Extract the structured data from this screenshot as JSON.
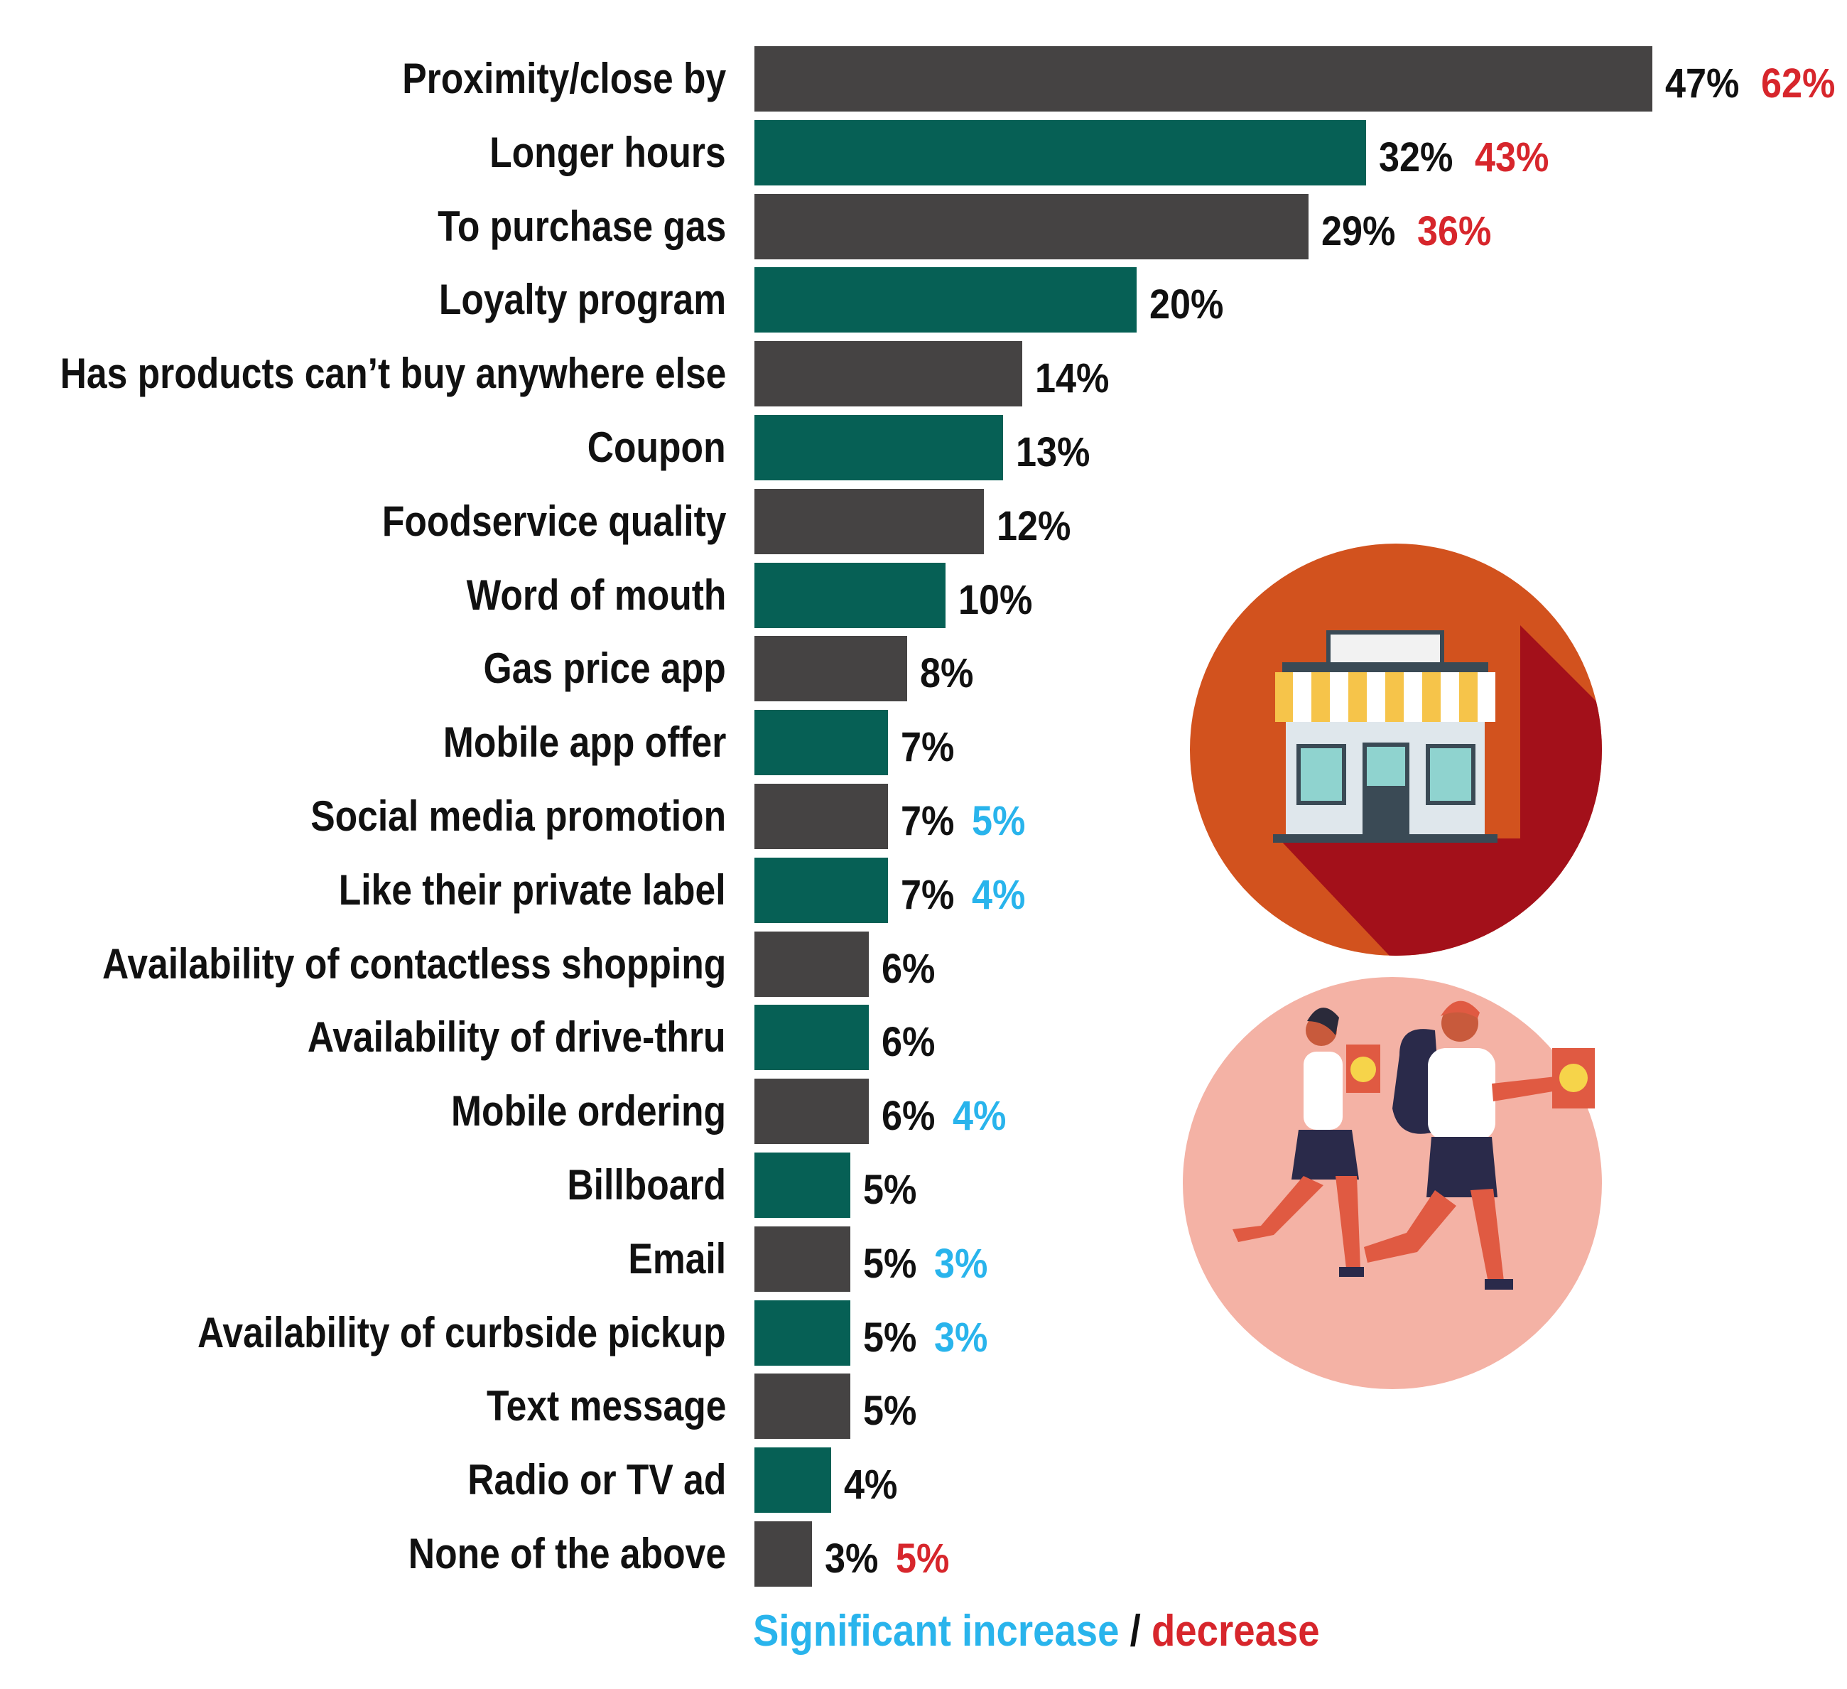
{
  "chart_data": {
    "type": "bar",
    "orientation": "horizontal",
    "categories": [
      "Proximity/close by",
      "Longer hours",
      "To purchase gas",
      "Loyalty program",
      "Has products can’t buy anywhere else",
      "Coupon",
      "Foodservice quality",
      "Word of mouth",
      "Gas price app",
      "Mobile app offer",
      "Social media promotion",
      "Like their private label",
      "Availability of contactless shopping",
      "Availability of drive-thru",
      "Mobile ordering",
      "Billboard",
      "Email",
      "Availability of curbside pickup",
      "Text message",
      "Radio or TV ad",
      "None of the above"
    ],
    "values": [
      47,
      32,
      29,
      20,
      14,
      13,
      12,
      10,
      8,
      7,
      7,
      7,
      6,
      6,
      6,
      5,
      5,
      5,
      5,
      4,
      3
    ],
    "value_labels": [
      "47%",
      "32%",
      "29%",
      "20%",
      "14%",
      "13%",
      "12%",
      "10%",
      "8%",
      "7%",
      "7%",
      "7%",
      "6%",
      "6%",
      "6%",
      "5%",
      "5%",
      "5%",
      "5%",
      "4%",
      "3%"
    ],
    "comparison_labels": [
      "62%",
      "43%",
      "36%",
      "",
      "",
      "",
      "",
      "",
      "",
      "",
      "5%",
      "4%",
      "",
      "",
      "4%",
      "",
      "3%",
      "3%",
      "",
      "",
      "5%"
    ],
    "comparison_type": [
      "decrease",
      "decrease",
      "decrease",
      "",
      "",
      "",
      "",
      "",
      "",
      "",
      "increase",
      "increase",
      "",
      "",
      "increase",
      "",
      "increase",
      "increase",
      "",
      "",
      "decrease"
    ],
    "bar_colors": [
      "#454343",
      "#066055"
    ],
    "increase_color": "#29b4ec",
    "decrease_color": "#d7262c",
    "legend": {
      "increase_text": "Significant increase",
      "separator": "/",
      "decrease_text": "decrease"
    },
    "illustrations": [
      "store-icon",
      "shoppers-icon"
    ]
  }
}
